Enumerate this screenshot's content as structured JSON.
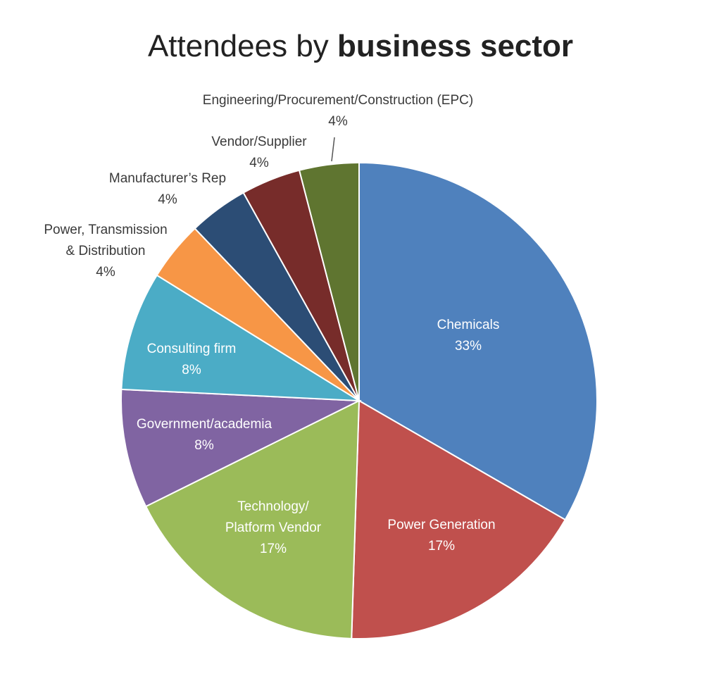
{
  "chart_data": {
    "type": "pie",
    "title": "Attendees by",
    "title_bold": "business sector",
    "categories": [
      "Chemicals",
      "Power Generation",
      "Technology/\nPlatform Vendor",
      "Government/academia",
      "Consulting firm",
      "Power, Transmission\n& Distribution",
      "Manufacturer’s Rep",
      "Vendor/Supplier",
      "Engineering/Procurement/Construction (EPC)"
    ],
    "values": [
      33,
      17,
      17,
      8,
      8,
      4,
      4,
      4,
      4
    ],
    "value_labels": [
      "33%",
      "17%",
      "17%",
      "8%",
      "8%",
      "4%",
      "4%",
      "4%",
      "4%"
    ],
    "colors": [
      "#4f81bd",
      "#c0504d",
      "#9bbb59",
      "#8064a2",
      "#4bacc6",
      "#f79646",
      "#2c4d75",
      "#772c2a",
      "#5f7530"
    ]
  }
}
